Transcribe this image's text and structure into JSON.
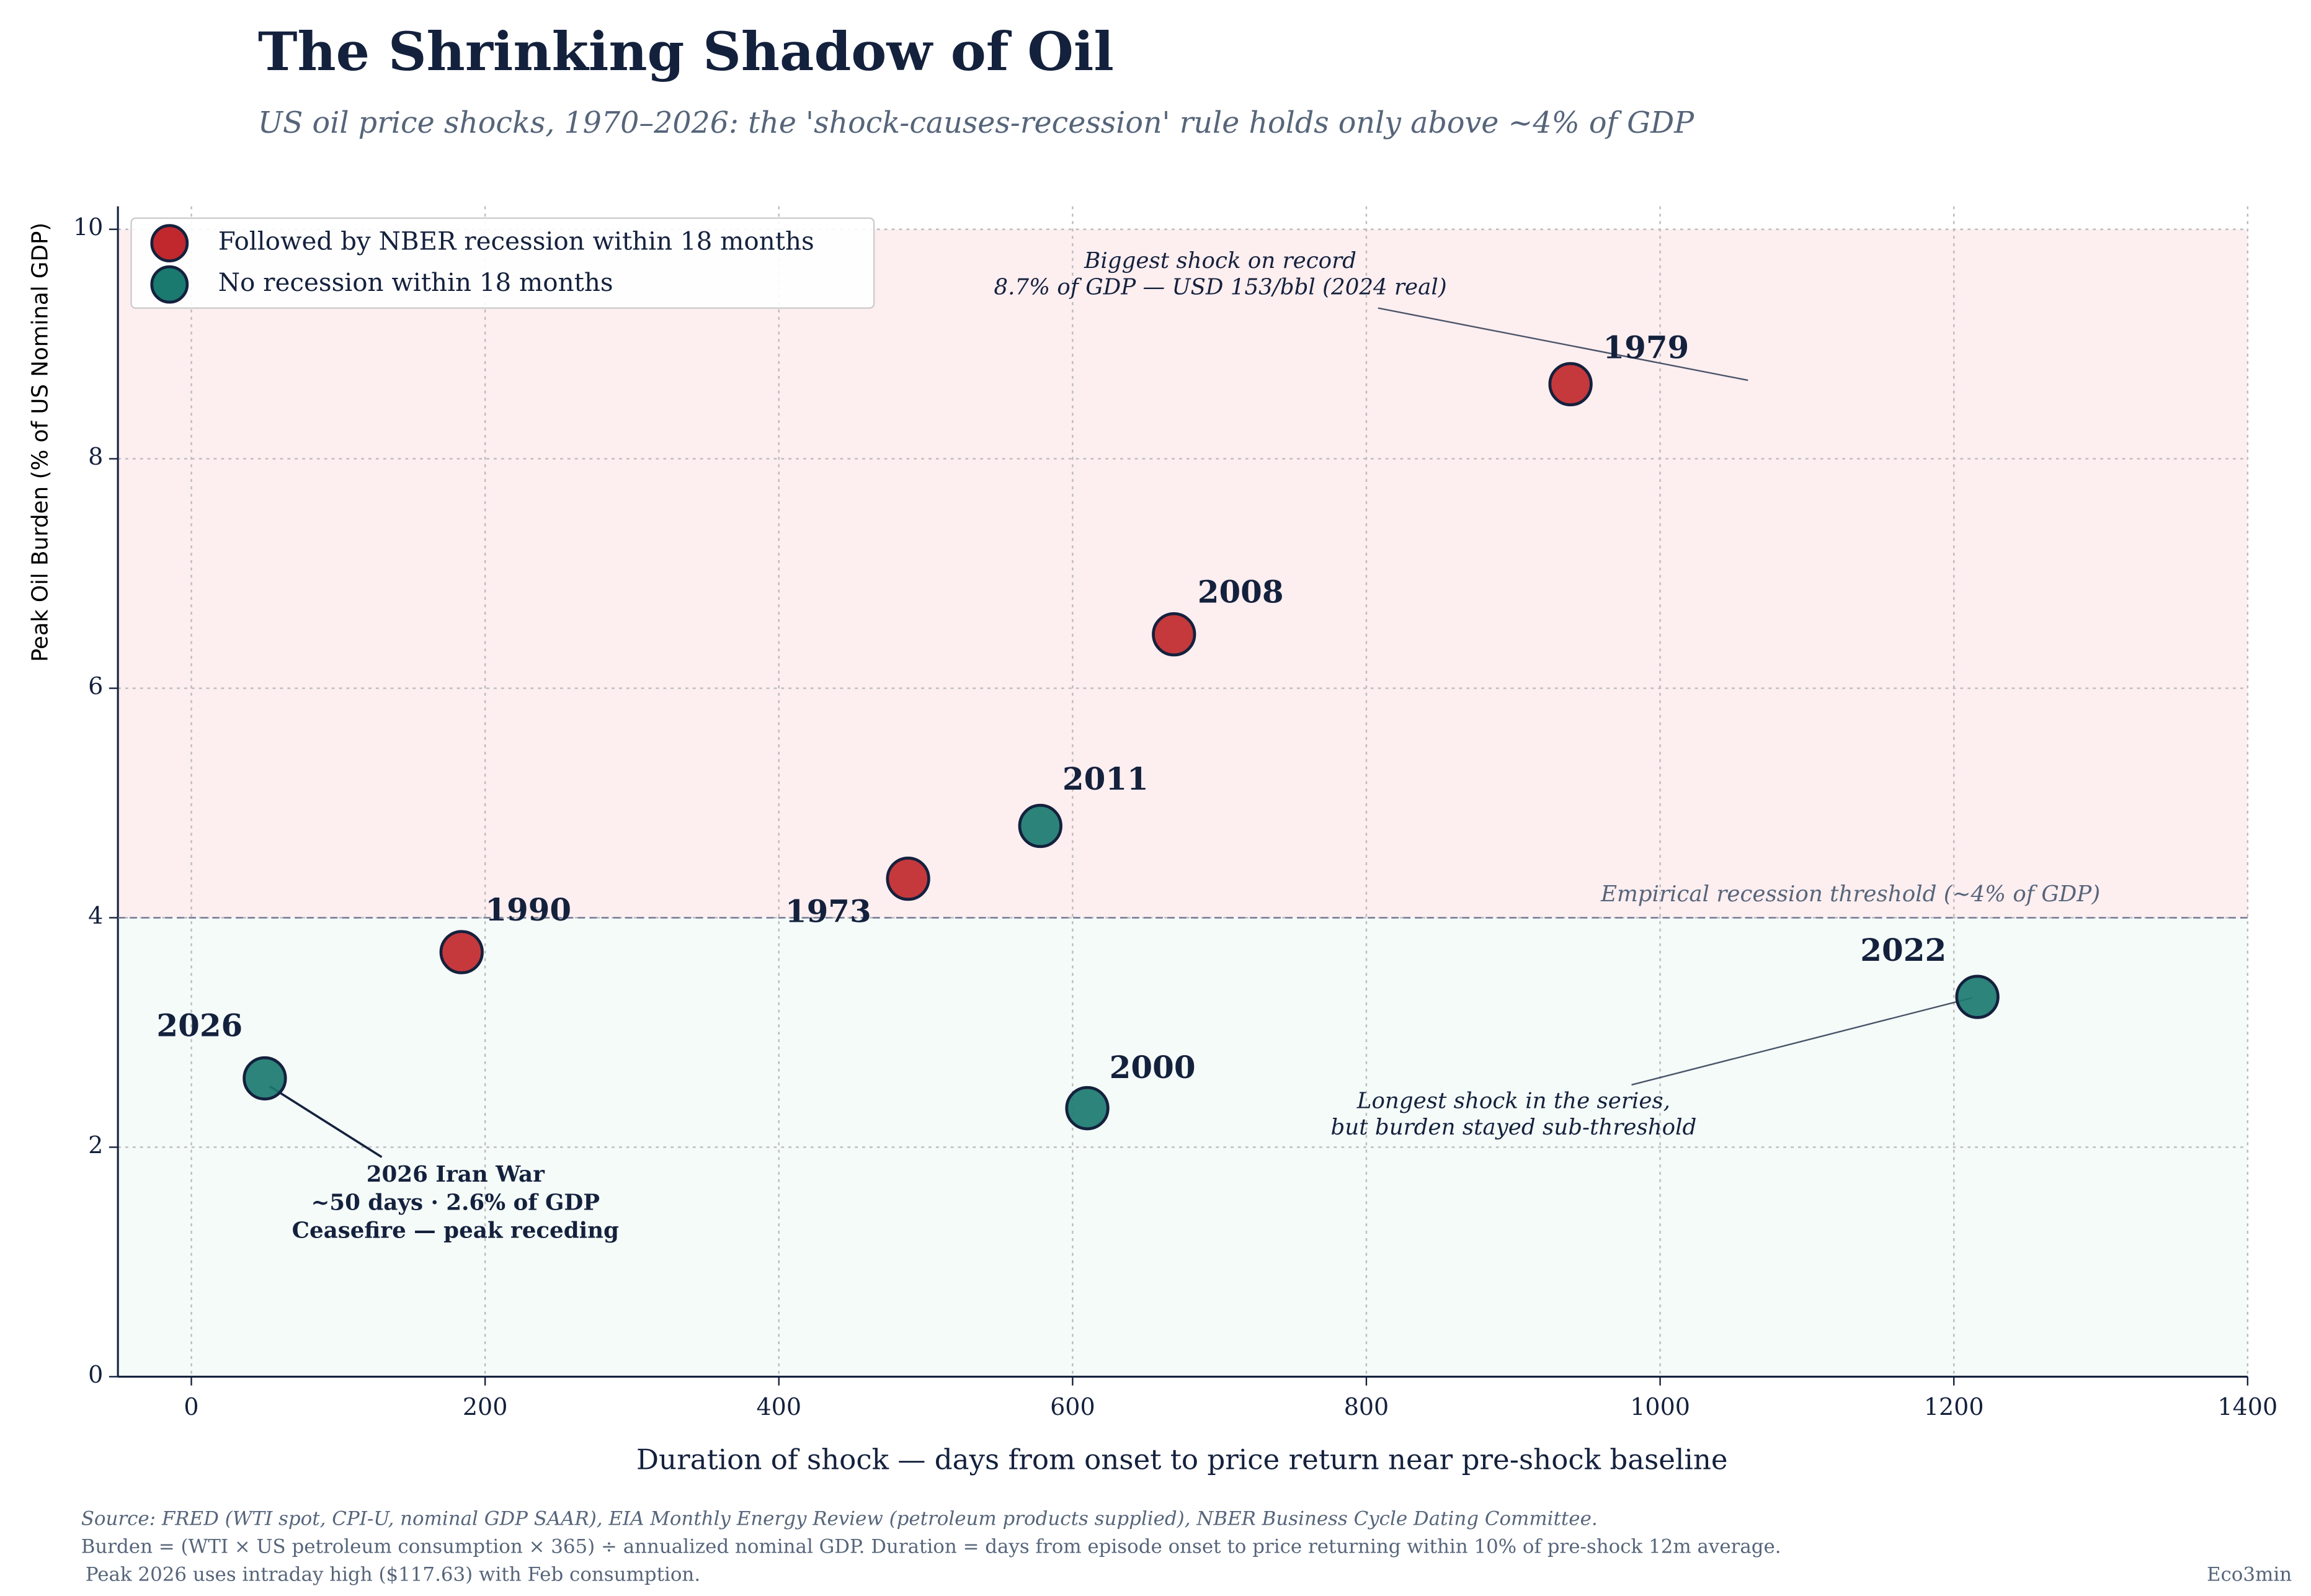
{
  "chart_data": {
    "type": "scatter",
    "title": "The Shrinking Shadow of Oil",
    "subtitle": "US oil price shocks, 1970–2026: the 'shock-causes-recession' rule holds only above ~4% of GDP",
    "x_label": "Duration of shock — days from onset to price return near pre-shock baseline",
    "y_label": "Peak Oil Burden (% of US Nominal GDP)",
    "xlim": [
      -50,
      1400
    ],
    "ylim": [
      0,
      10.2
    ],
    "xticks": [
      0,
      200,
      400,
      600,
      800,
      1000,
      1200,
      1400
    ],
    "yticks": [
      0,
      2,
      4,
      6,
      8,
      10
    ],
    "grid": true,
    "legend": "upper left",
    "threshold": {
      "value": 4,
      "label": "Empirical recession threshold (~4% of GDP)"
    },
    "series": [
      {
        "name": "Followed by NBER recession within 18 months",
        "color": "#c0282d",
        "x": [
          488,
          939,
          184,
          669
        ],
        "values": [
          4.34,
          8.65,
          3.7,
          6.47
        ],
        "labels": [
          "1973",
          "1979",
          "1990",
          "2008"
        ]
      },
      {
        "name": "No recession within 18 months",
        "color": "#1a7a70",
        "x": [
          610,
          578,
          1216,
          50
        ],
        "values": [
          2.34,
          4.8,
          3.31,
          2.6
        ],
        "labels": [
          "2000",
          "2011",
          "2022",
          "2026"
        ]
      }
    ],
    "annotations": [
      {
        "lines": [
          "Biggest shock on record",
          "8.7% of GDP — USD 153/bbl (2024 real)"
        ]
      },
      {
        "lines": [
          "Longest shock in the series,",
          "but burden stayed sub-threshold"
        ]
      },
      {
        "lines": [
          "2026 Iran War",
          "~50 days · 2.6% of GDP",
          "Ceasefire — peak receding"
        ]
      }
    ],
    "source": [
      "Source: FRED (WTI spot, CPI-U, nominal GDP SAAR), EIA Monthly Energy Review (petroleum products supplied), NBER Business Cycle Dating Committee.",
      "Burden = (WTI × US petroleum consumption × 365) ÷ annualized nominal GDP.  Duration = days from episode onset to price returning within 10% of pre-shock 12m average.",
      "Peak 2026 uses intraday high ($117.63) with Feb consumption."
    ],
    "credit": "Eco3min"
  }
}
